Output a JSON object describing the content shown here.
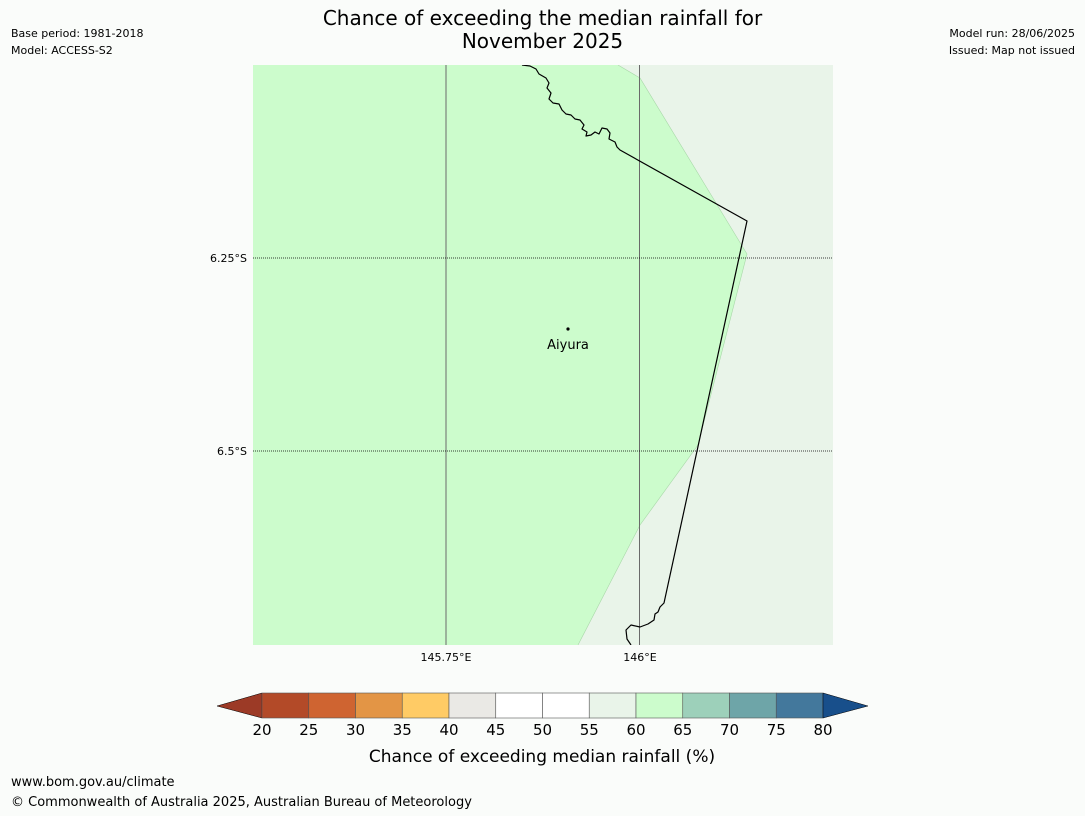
{
  "header": {
    "title_line1": "Chance of exceeding the median rainfall for",
    "title_line2": "November 2025",
    "base_period": "Base period: 1981-2018",
    "model": "Model: ACCESS-S2",
    "model_run": "Model run: 28/06/2025",
    "issued": "Issued: Map not issued"
  },
  "map": {
    "latitude_labels": [
      "6.25°S",
      "6.5°S"
    ],
    "longitude_labels": [
      "145.75°E",
      "146°E"
    ],
    "place": {
      "name": "Aiyura"
    },
    "regions": [
      {
        "category": "60-65%",
        "color": "#ccfccc"
      },
      {
        "category": "55-60%",
        "color": "#e9f4e9"
      }
    ],
    "border_color": "#000000"
  },
  "legend": {
    "tick_labels": [
      "20",
      "25",
      "30",
      "35",
      "40",
      "45",
      "50",
      "55",
      "60",
      "65",
      "70",
      "75",
      "80"
    ],
    "label": "Chance of exceeding median rainfall (%)",
    "colors": {
      "below_20": "#9c3a26",
      "bins": [
        "#b34a28",
        "#cf6431",
        "#e39545",
        "#ffcb65",
        "#eae9e5",
        "#ffffff",
        "#ffffff",
        "#e9f4e9",
        "#ccfccc",
        "#9dd0ba",
        "#6ea5a8",
        "#43789c"
      ],
      "above_80": "#184f8b"
    }
  },
  "footer": {
    "website": "www.bom.gov.au/climate",
    "copyright": "© Commonwealth of Australia 2025, Australian Bureau of Meteorology"
  }
}
